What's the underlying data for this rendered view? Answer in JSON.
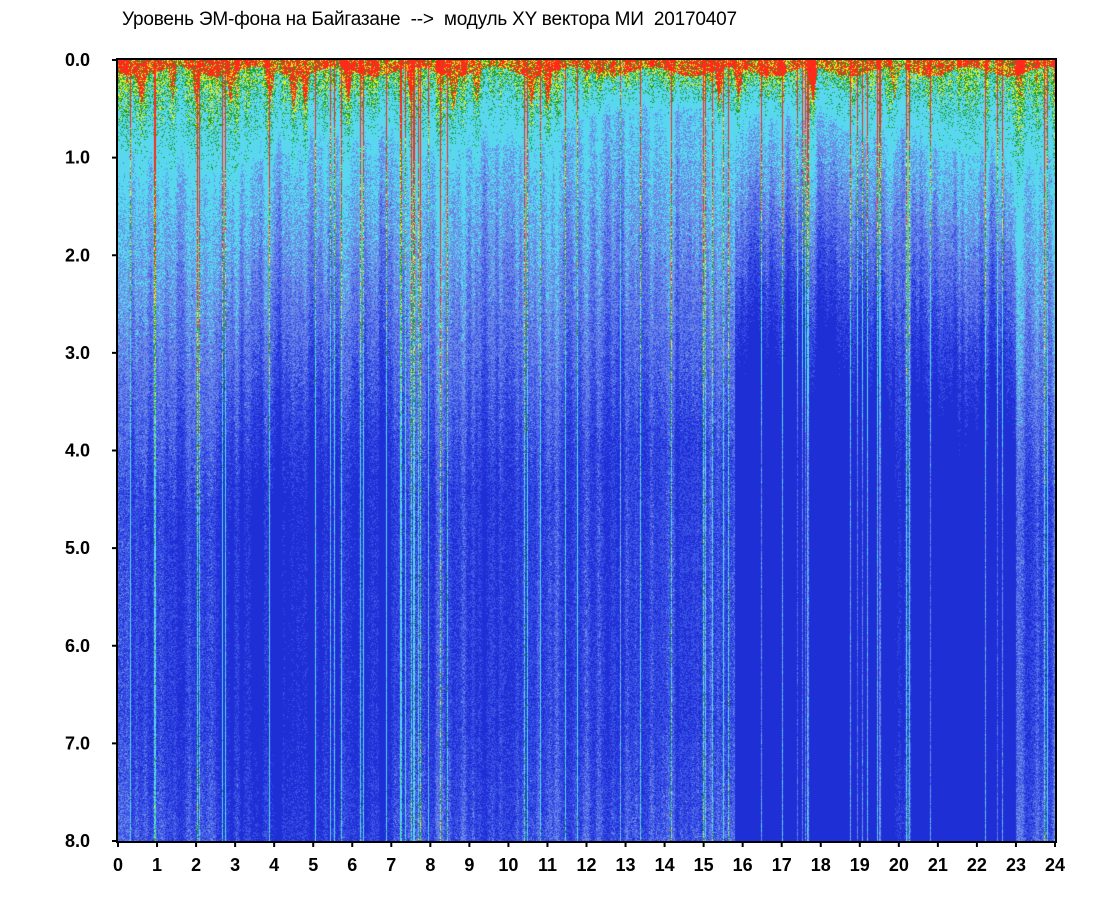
{
  "chart_data": {
    "type": "heatmap",
    "title": "Уровень ЭМ-фона на Байгазане  -->  модуль XY вектора МИ  20170407",
    "xlabel": "",
    "ylabel": "",
    "x_ticks": [
      "0",
      "1",
      "2",
      "3",
      "4",
      "5",
      "6",
      "7",
      "8",
      "9",
      "10",
      "11",
      "12",
      "13",
      "14",
      "15",
      "16",
      "17",
      "18",
      "19",
      "20",
      "21",
      "22",
      "23",
      "24"
    ],
    "y_ticks": [
      "0.0",
      "1.0",
      "2.0",
      "3.0",
      "4.0",
      "5.0",
      "6.0",
      "7.0",
      "8.0"
    ],
    "xlim": [
      0,
      24
    ],
    "ylim": [
      8.0,
      0.0
    ],
    "y_inverted": true,
    "grid": false,
    "legend": "none",
    "colors": [
      "#1f2fd6",
      "#3c55e6",
      "#6b88e6",
      "#58d7ef",
      "#1f9f2a",
      "#ecec20",
      "#ff2a1a"
    ],
    "bright_band_top": [
      [
        0,
        0.9
      ],
      [
        1,
        1.1
      ],
      [
        2,
        1.2
      ],
      [
        3,
        1.1
      ],
      [
        4,
        1.0
      ],
      [
        5,
        0.8
      ],
      [
        6,
        0.8
      ],
      [
        7,
        0.8
      ],
      [
        8,
        1.0
      ],
      [
        9,
        0.9
      ],
      [
        10,
        0.9
      ],
      [
        11,
        0.8
      ],
      [
        12,
        0.6
      ],
      [
        13,
        0.5
      ],
      [
        14,
        0.5
      ],
      [
        15,
        0.5
      ],
      [
        16,
        0.6
      ],
      [
        17,
        0.6
      ],
      [
        18,
        0.6
      ],
      [
        19,
        0.8
      ],
      [
        20,
        0.8
      ],
      [
        21,
        0.9
      ],
      [
        22,
        1.0
      ],
      [
        23,
        1.2
      ],
      [
        24,
        1.0
      ]
    ],
    "dips": [
      0.6,
      1.4,
      2.0,
      2.9,
      3.9,
      4.5,
      4.8,
      5.9,
      7.5,
      8.6,
      9.2,
      10.6,
      11.0,
      15.4,
      15.9,
      17.8,
      19.9
    ]
  }
}
